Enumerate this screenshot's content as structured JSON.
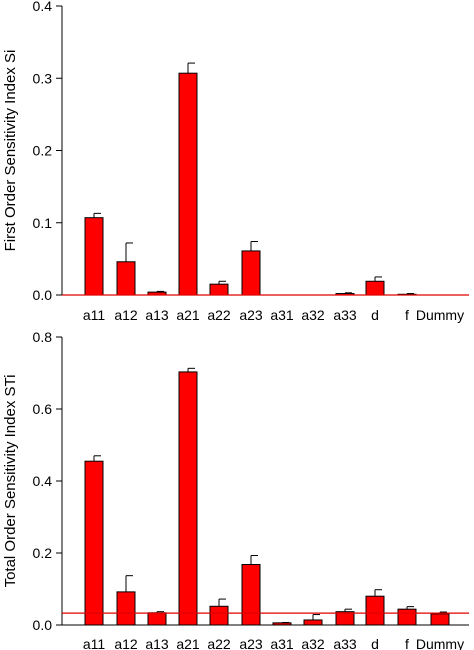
{
  "chart_data": [
    {
      "type": "bar",
      "ylabel": "First Order Sensitivity Index Si",
      "xlabel": "",
      "ylim": [
        0,
        0.4
      ],
      "yticks": [
        "0.0",
        "0.1",
        "0.2",
        "0.3",
        "0.4"
      ],
      "categories": [
        "a11",
        "a12",
        "a13",
        "a21",
        "a22",
        "a23",
        "a31",
        "a32",
        "a33",
        "d",
        "f",
        "Dummy"
      ],
      "values": [
        0.107,
        0.046,
        0.004,
        0.307,
        0.015,
        0.061,
        0.0,
        0.0,
        0.002,
        0.019,
        0.001,
        0.0
      ],
      "errors": [
        0.006,
        0.026,
        0.001,
        0.014,
        0.004,
        0.013,
        0.0,
        0.0,
        0.001,
        0.006,
        0.001,
        0.0
      ],
      "reference_line": 0.0,
      "grid": false,
      "bar_color": "#ff0000",
      "reference_line_color": "#e00000"
    },
    {
      "type": "bar",
      "ylabel": "Total Order Sensitivity Index STi",
      "xlabel": "",
      "ylim": [
        0,
        0.8
      ],
      "yticks": [
        "0.0",
        "0.2",
        "0.4",
        "0.6",
        "0.8"
      ],
      "categories": [
        "a11",
        "a12",
        "a13",
        "a21",
        "a22",
        "a23",
        "a31",
        "a32",
        "a33",
        "d",
        "f",
        "Dummy"
      ],
      "values": [
        0.455,
        0.092,
        0.034,
        0.703,
        0.052,
        0.168,
        0.006,
        0.014,
        0.037,
        0.08,
        0.044,
        0.031
      ],
      "errors": [
        0.015,
        0.045,
        0.003,
        0.01,
        0.02,
        0.025,
        0.001,
        0.015,
        0.007,
        0.018,
        0.007,
        0.005
      ],
      "reference_line": 0.033,
      "grid": false,
      "bar_color": "#ff0000",
      "reference_line_color": "#e00000"
    }
  ]
}
